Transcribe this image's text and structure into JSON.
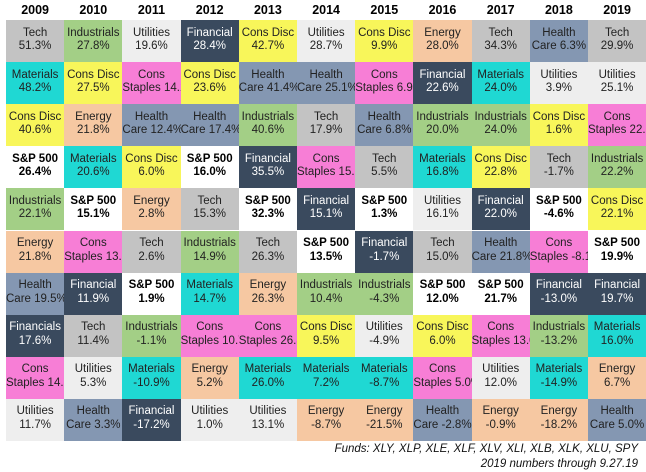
{
  "chart_data": {
    "type": "table",
    "years": [
      "2009",
      "2010",
      "2011",
      "2012",
      "2013",
      "2014",
      "2015",
      "2016",
      "2017",
      "2018",
      "2019"
    ],
    "columns": [
      [
        [
          "Tech",
          "51.3%"
        ],
        [
          "Materials",
          "48.2%"
        ],
        [
          "Cons Disc",
          "40.6%"
        ],
        [
          "S&P 500",
          "26.4%"
        ],
        [
          "Industrials",
          "22.1%"
        ],
        [
          "Energy",
          "21.8%"
        ],
        [
          "Health Care",
          "19.5%"
        ],
        [
          "Financials",
          "17.6%"
        ],
        [
          "Cons Staples",
          "14.3%"
        ],
        [
          "Utilities",
          "11.7%"
        ]
      ],
      [
        [
          "Industrials",
          "27.8%"
        ],
        [
          "Cons Disc",
          "27.5%"
        ],
        [
          "Energy",
          "21.8%"
        ],
        [
          "Materials",
          "20.6%"
        ],
        [
          "S&P 500",
          "15.1%"
        ],
        [
          "Cons Staples",
          "13.8%"
        ],
        [
          "Financial",
          "11.9%"
        ],
        [
          "Tech",
          "11.4%"
        ],
        [
          "Utilities",
          "5.3%"
        ],
        [
          "Health Care",
          "3.3%"
        ]
      ],
      [
        [
          "Utilities",
          "19.6%"
        ],
        [
          "Cons Staples",
          "14.1%"
        ],
        [
          "Health Care",
          "12.4%"
        ],
        [
          "Cons Disc",
          "6.0%"
        ],
        [
          "Energy",
          "2.8%"
        ],
        [
          "Tech",
          "2.6%"
        ],
        [
          "S&P 500",
          "1.9%"
        ],
        [
          "Industrials",
          "-1.1%"
        ],
        [
          "Materials",
          "-10.9%"
        ],
        [
          "Financial",
          "-17.2%"
        ]
      ],
      [
        [
          "Financial",
          "28.4%"
        ],
        [
          "Cons Disc",
          "23.6%"
        ],
        [
          "Health Care",
          "17.4%"
        ],
        [
          "S&P 500",
          "16.0%"
        ],
        [
          "Tech",
          "15.3%"
        ],
        [
          "Industrials",
          "14.9%"
        ],
        [
          "Materials",
          "14.7%"
        ],
        [
          "Cons Staples",
          "10.7%"
        ],
        [
          "Energy",
          "5.2%"
        ],
        [
          "Utilities",
          "1.0%"
        ]
      ],
      [
        [
          "Cons Disc",
          "42.7%"
        ],
        [
          "Health Care",
          "41.4%"
        ],
        [
          "Industrials",
          "40.6%"
        ],
        [
          "Financial",
          "35.5%"
        ],
        [
          "S&P 500",
          "32.3%"
        ],
        [
          "Tech",
          "26.3%"
        ],
        [
          "Energy",
          "26.3%"
        ],
        [
          "Cons Staples",
          "26.3%"
        ],
        [
          "Materials",
          "26.0%"
        ],
        [
          "Utilities",
          "13.1%"
        ]
      ],
      [
        [
          "Utilities",
          "28.7%"
        ],
        [
          "Health Care",
          "25.1%"
        ],
        [
          "Tech",
          "17.9%"
        ],
        [
          "Cons Staples",
          "15.7%"
        ],
        [
          "Financial",
          "15.1%"
        ],
        [
          "S&P 500",
          "13.5%"
        ],
        [
          "Industrials",
          "10.4%"
        ],
        [
          "Cons Disc",
          "9.5%"
        ],
        [
          "Materials",
          "7.2%"
        ],
        [
          "Energy",
          "-8.7%"
        ]
      ],
      [
        [
          "Cons Disc",
          "9.9%"
        ],
        [
          "Cons Staples",
          "6.9%"
        ],
        [
          "Health Care",
          "6.8%"
        ],
        [
          "Tech",
          "5.5%"
        ],
        [
          "S&P 500",
          "1.3%"
        ],
        [
          "Financial",
          "-1.7%"
        ],
        [
          "Industrials",
          "-4.3%"
        ],
        [
          "Utilities",
          "-4.9%"
        ],
        [
          "Materials",
          "-8.7%"
        ],
        [
          "Energy",
          "-21.5%"
        ]
      ],
      [
        [
          "Energy",
          "28.0%"
        ],
        [
          "Financial",
          "22.6%"
        ],
        [
          "Industrials",
          "20.0%"
        ],
        [
          "Materials",
          "16.8%"
        ],
        [
          "Utilities",
          "16.1%"
        ],
        [
          "Tech",
          "15.0%"
        ],
        [
          "S&P 500",
          "12.0%"
        ],
        [
          "Cons Disc",
          "6.0%"
        ],
        [
          "Cons Staples",
          "5.0%"
        ],
        [
          "Health Care",
          "-2.8%"
        ]
      ],
      [
        [
          "Tech",
          "34.3%"
        ],
        [
          "Materials",
          "24.0%"
        ],
        [
          "Industrials",
          "24.0%"
        ],
        [
          "Cons Disc",
          "22.8%"
        ],
        [
          "Financial",
          "22.0%"
        ],
        [
          "Health Care",
          "21.8%"
        ],
        [
          "S&P 500",
          "21.7%"
        ],
        [
          "Cons Staples",
          "13.0%"
        ],
        [
          "Utilities",
          "12.0%"
        ],
        [
          "Energy",
          "-0.9%"
        ]
      ],
      [
        [
          "Health Care",
          "6.3%"
        ],
        [
          "Utilities",
          "3.9%"
        ],
        [
          "Cons Disc",
          "1.6%"
        ],
        [
          "Tech",
          "-1.7%"
        ],
        [
          "S&P 500",
          "-4.6%"
        ],
        [
          "Cons Staples",
          "-8.1%"
        ],
        [
          "Financial",
          "-13.0%"
        ],
        [
          "Industrials",
          "-13.2%"
        ],
        [
          "Materials",
          "-14.9%"
        ],
        [
          "Energy",
          "-18.2%"
        ]
      ],
      [
        [
          "Tech",
          "29.9%"
        ],
        [
          "Utilities",
          "25.1%"
        ],
        [
          "Cons Staples",
          "22.7%"
        ],
        [
          "Industrials",
          "22.2%"
        ],
        [
          "Cons Disc",
          "22.1%"
        ],
        [
          "S&P 500",
          "19.9%"
        ],
        [
          "Financial",
          "19.7%"
        ],
        [
          "Materials",
          "16.0%"
        ],
        [
          "Energy",
          "6.7%"
        ],
        [
          "Health Care",
          "5.0%"
        ]
      ]
    ],
    "sector_colors": {
      "Tech": "#c3c3c3",
      "Materials": "#1fd8d3",
      "Cons Disc": "#f8f65a",
      "S&P 500": "#ffffff",
      "Industrials": "#a3cf86",
      "Energy": "#f6c8a2",
      "Health Care": "#8497b2",
      "Financials": "#3a4a5e",
      "Financial": "#3a4a5e",
      "Cons Staples": "#f77ed6",
      "Utilities": "#eeeeee"
    },
    "dark_text_sectors": [
      "Financials",
      "Financial"
    ],
    "footnote_funds": "Funds:  XLY, XLP, XLE, XLF, XLV, XLI, XLB, XLK, XLU, SPY",
    "footnote_date": "2019 numbers through 9.27.19"
  }
}
